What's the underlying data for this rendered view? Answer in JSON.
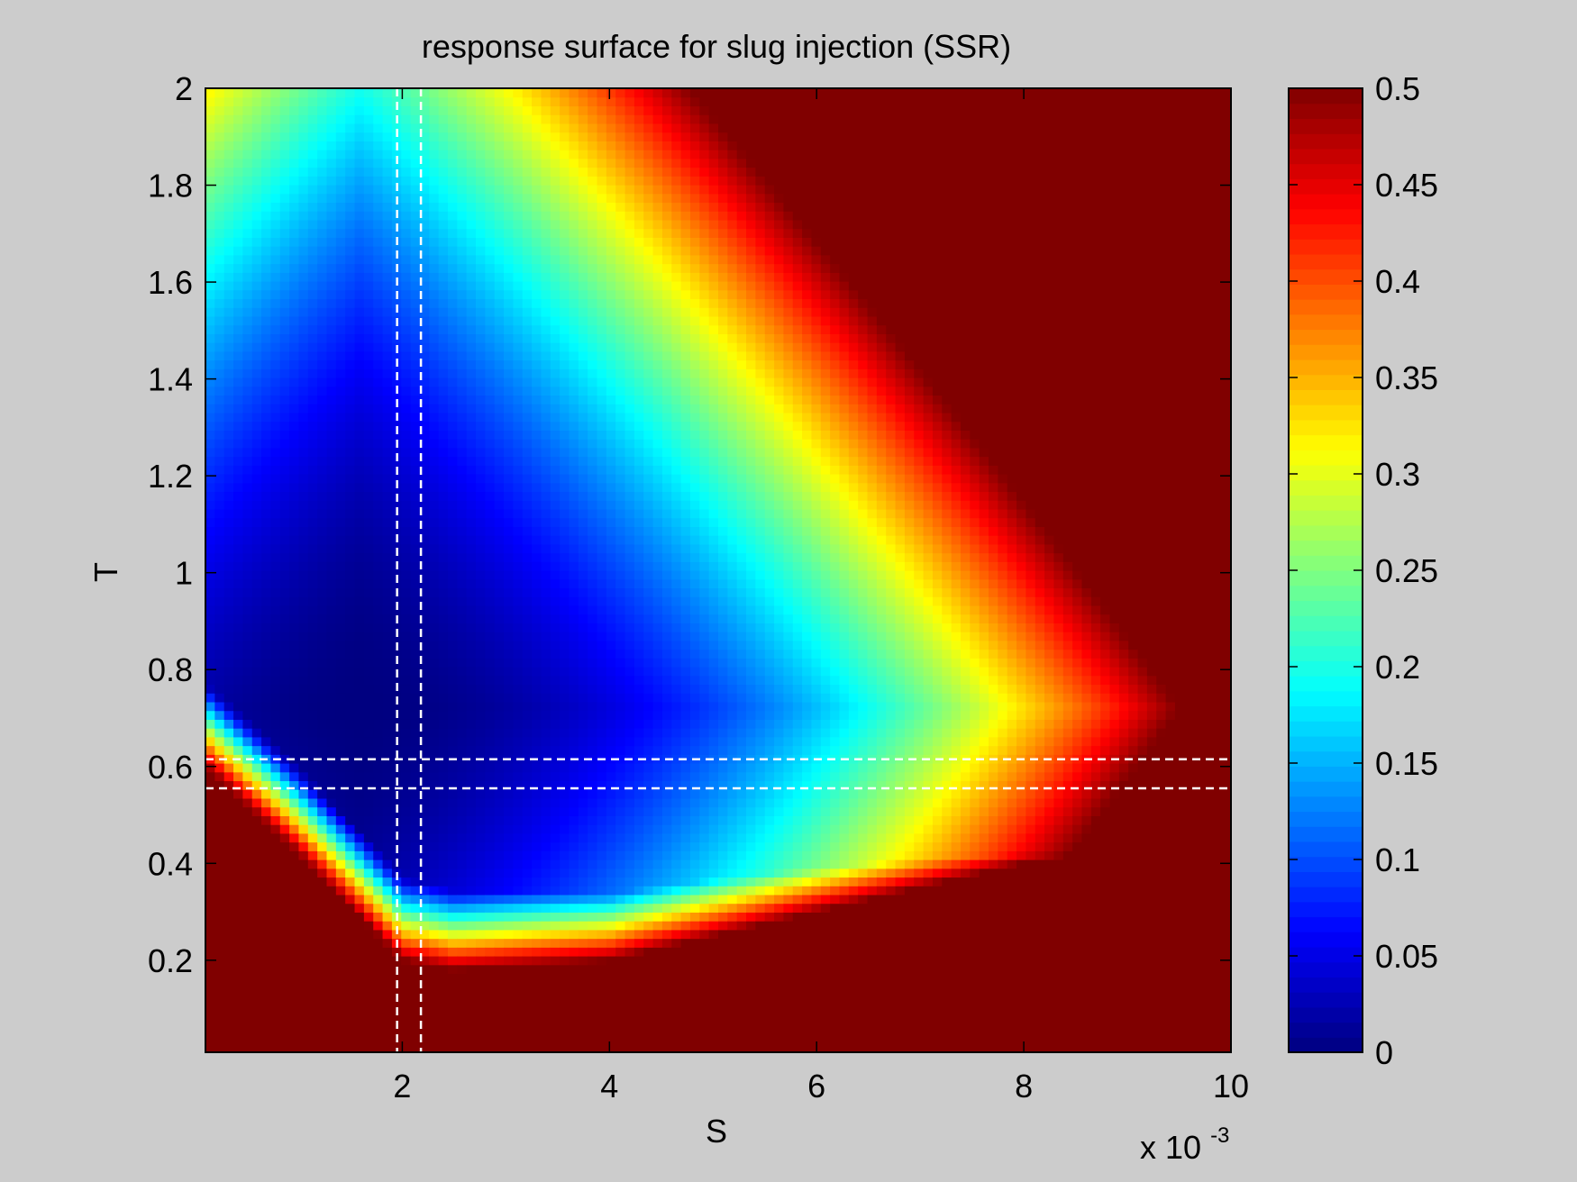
{
  "chart_data": {
    "type": "heatmap",
    "title": "response surface for slug injection (SSR)",
    "xlabel": "S",
    "ylabel": "T",
    "x_exponent_label": "x 10",
    "x_exponent_power": "-3",
    "xlim": [
      0.0001,
      0.01
    ],
    "ylim": [
      0.01,
      2
    ],
    "x_ticks": [
      0.002,
      0.004,
      0.006,
      0.008,
      0.01
    ],
    "x_tick_labels": [
      "2",
      "4",
      "6",
      "8",
      "10"
    ],
    "y_ticks": [
      0.2,
      0.4,
      0.6,
      0.8,
      1.0,
      1.2,
      1.4,
      1.6,
      1.8,
      2.0
    ],
    "y_tick_labels": [
      "0.2",
      "0.4",
      "0.6",
      "0.8",
      "1",
      "1.2",
      "1.4",
      "1.6",
      "1.8",
      "2"
    ],
    "grid": false,
    "colormap": "jet",
    "colorbar": {
      "clim": [
        0,
        0.5
      ],
      "ticks": [
        0,
        0.05,
        0.1,
        0.15,
        0.2,
        0.25,
        0.3,
        0.35,
        0.4,
        0.45,
        0.5
      ],
      "tick_labels": [
        "0",
        "0.05",
        "0.1",
        "0.15",
        "0.2",
        "0.25",
        "0.3",
        "0.35",
        "0.4",
        "0.45",
        "0.5"
      ],
      "placement": "right"
    },
    "surface": {
      "minimum": {
        "S": 0.0016,
        "T": 0.72,
        "value": 0.0
      },
      "low_valley": {
        "S": 0.0028,
        "T": 0.45,
        "value": 0.02
      },
      "saturated_value": 0.5,
      "lower_boundary_T_at_S": [
        [
          0.0001,
          0.6
        ],
        [
          0.001,
          0.42
        ],
        [
          0.002,
          0.2
        ],
        [
          0.0025,
          0.18
        ],
        [
          0.004,
          0.2
        ],
        [
          0.006,
          0.3
        ],
        [
          0.008,
          0.4
        ],
        [
          0.01,
          0.48
        ]
      ],
      "contours": [
        {
          "value": 0.1,
          "T_at_S": [
            [
              0.0001,
              1.15
            ],
            [
              0.002,
              1.0
            ],
            [
              0.003,
              0.75
            ],
            [
              0.0035,
              0.4
            ]
          ]
        },
        {
          "value": 0.2,
          "T_at_S": [
            [
              0.0001,
              1.6
            ],
            [
              0.0025,
              1.45
            ],
            [
              0.004,
              0.95
            ],
            [
              0.0045,
              0.5
            ]
          ]
        },
        {
          "value": 0.3,
          "T_at_S": [
            [
              0.002,
              2.0
            ],
            [
              0.0045,
              1.4
            ],
            [
              0.006,
              0.8
            ],
            [
              0.006,
              0.5
            ]
          ]
        },
        {
          "value": 0.4,
          "T_at_S": [
            [
              0.0045,
              2.0
            ],
            [
              0.0065,
              1.3
            ],
            [
              0.0072,
              0.8
            ],
            [
              0.007,
              0.45
            ]
          ]
        },
        {
          "value": 0.45,
          "T_at_S": [
            [
              0.006,
              2.0
            ],
            [
              0.008,
              1.4
            ],
            [
              0.0085,
              0.8
            ]
          ]
        }
      ]
    },
    "reference_lines": {
      "vertical_S": [
        0.00195,
        0.00218
      ],
      "horizontal_T": [
        0.555,
        0.615
      ],
      "style": "dashed",
      "color": "#ffffff"
    }
  }
}
